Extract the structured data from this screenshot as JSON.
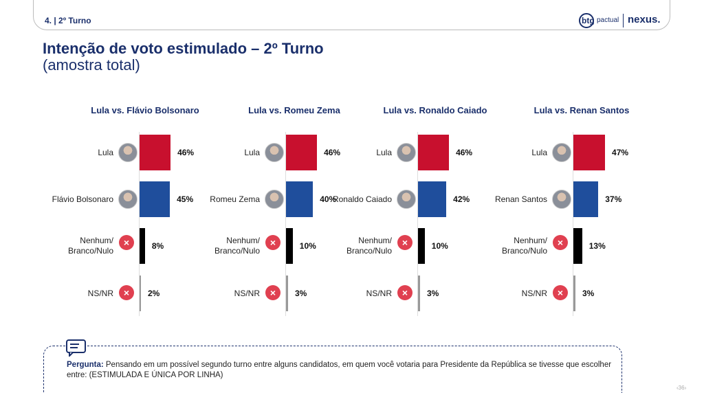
{
  "header": {
    "section": "4. | 2º Turno",
    "brand_1": "btg",
    "brand_2": "pactual",
    "brand_3": "nexus."
  },
  "title": "Intenção de voto estimulado – 2º Turno",
  "subtitle": "(amostra total)",
  "chart_data": [
    {
      "type": "bar",
      "title": "Lula vs. Flávio Bolsonaro",
      "categories": [
        "Lula",
        "Flávio Bolsonaro",
        "Nenhum/ Branco/Nulo",
        "NS/NR"
      ],
      "values": [
        46,
        45,
        8,
        2
      ],
      "value_labels": [
        "46%",
        "45%",
        "8%",
        "2%"
      ],
      "colors": [
        "#c8102e",
        "#1f4e9c",
        "#000000",
        "#999999"
      ]
    },
    {
      "type": "bar",
      "title": "Lula vs. Romeu Zema",
      "categories": [
        "Lula",
        "Romeu Zema",
        "Nenhum/ Branco/Nulo",
        "NS/NR"
      ],
      "values": [
        46,
        40,
        10,
        3
      ],
      "value_labels": [
        "46%",
        "40%",
        "10%",
        "3%"
      ],
      "colors": [
        "#c8102e",
        "#1f4e9c",
        "#000000",
        "#999999"
      ]
    },
    {
      "type": "bar",
      "title": "Lula vs. Ronaldo Caiado",
      "categories": [
        "Lula",
        "Ronaldo Caiado",
        "Nenhum/ Branco/Nulo",
        "NS/NR"
      ],
      "values": [
        46,
        42,
        10,
        3
      ],
      "value_labels": [
        "46%",
        "42%",
        "10%",
        "3%"
      ],
      "colors": [
        "#c8102e",
        "#1f4e9c",
        "#000000",
        "#999999"
      ]
    },
    {
      "type": "bar",
      "title": "Lula vs. Renan Santos",
      "categories": [
        "Lula",
        "Renan Santos",
        "Nenhum/ Branco/Nulo",
        "NS/NR"
      ],
      "values": [
        47,
        37,
        13,
        3
      ],
      "value_labels": [
        "47%",
        "37%",
        "13%",
        "3%"
      ],
      "colors": [
        "#c8102e",
        "#1f4e9c",
        "#000000",
        "#999999"
      ]
    }
  ],
  "footer": {
    "label": "Pergunta:",
    "question": "Pensando em um possível segundo turno entre alguns candidatos, em quem você votaria para Presidente da República se tivesse que escolher entre: (ESTIMULADA E ÚNICA POR LINHA)",
    "page": "36"
  }
}
